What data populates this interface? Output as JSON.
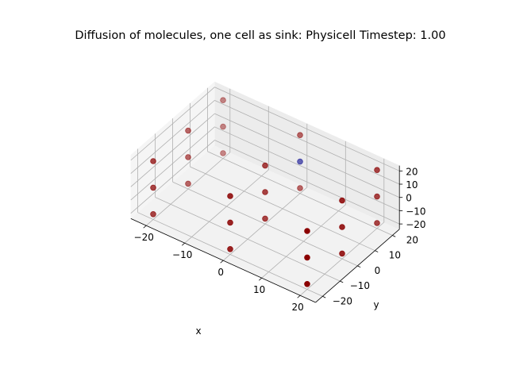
{
  "chart_data": {
    "type": "scatter3d",
    "title": "Diffusion of molecules, one cell as sink: Physicell Timestep: 1.00",
    "xlabel": "x",
    "ylabel": "y",
    "zlabel": "",
    "xlim": [
      -24,
      24
    ],
    "ylim": [
      -24,
      24
    ],
    "zlim": [
      -24,
      24
    ],
    "xticks": [
      -20,
      -10,
      0,
      10,
      20
    ],
    "yticks": [
      -20,
      -10,
      0,
      10,
      20
    ],
    "zticks": [
      -20,
      -10,
      0,
      10,
      20
    ],
    "tick_labels": {
      "x": [
        "−20",
        "−10",
        "0",
        "10",
        "20"
      ],
      "y": [
        "−20",
        "−10",
        "0",
        "10",
        "20"
      ],
      "z": [
        "−20",
        "−10",
        "0",
        "10",
        "20"
      ]
    },
    "grid": true,
    "marker_color": "#8b0000",
    "sink_color": "#00008b",
    "points": [
      {
        "x": -20,
        "y": -20,
        "z": -20,
        "kind": "cell"
      },
      {
        "x": -20,
        "y": -20,
        "z": 0,
        "kind": "cell"
      },
      {
        "x": -20,
        "y": -20,
        "z": 20,
        "kind": "cell"
      },
      {
        "x": -20,
        "y": 0,
        "z": -20,
        "kind": "cell"
      },
      {
        "x": -20,
        "y": 0,
        "z": 0,
        "kind": "cell"
      },
      {
        "x": -20,
        "y": 0,
        "z": 20,
        "kind": "cell"
      },
      {
        "x": -20,
        "y": 20,
        "z": -20,
        "kind": "cell"
      },
      {
        "x": -20,
        "y": 20,
        "z": 0,
        "kind": "cell"
      },
      {
        "x": -20,
        "y": 20,
        "z": 20,
        "kind": "cell"
      },
      {
        "x": 0,
        "y": -20,
        "z": -20,
        "kind": "cell"
      },
      {
        "x": 0,
        "y": -20,
        "z": 0,
        "kind": "cell"
      },
      {
        "x": 0,
        "y": -20,
        "z": 20,
        "kind": "cell"
      },
      {
        "x": 0,
        "y": 0,
        "z": -20,
        "kind": "cell"
      },
      {
        "x": 0,
        "y": 0,
        "z": 0,
        "kind": "cell"
      },
      {
        "x": 0,
        "y": 0,
        "z": 20,
        "kind": "cell"
      },
      {
        "x": 0,
        "y": 20,
        "z": -20,
        "kind": "cell"
      },
      {
        "x": 0,
        "y": 20,
        "z": 0,
        "kind": "sink"
      },
      {
        "x": 0,
        "y": 20,
        "z": 20,
        "kind": "cell"
      },
      {
        "x": 20,
        "y": -20,
        "z": -20,
        "kind": "cell"
      },
      {
        "x": 20,
        "y": -20,
        "z": 0,
        "kind": "cell"
      },
      {
        "x": 20,
        "y": -20,
        "z": 20,
        "kind": "cell"
      },
      {
        "x": 20,
        "y": 0,
        "z": -20,
        "kind": "cell"
      },
      {
        "x": 20,
        "y": 0,
        "z": 0,
        "kind": "cell"
      },
      {
        "x": 20,
        "y": 0,
        "z": 20,
        "kind": "cell"
      },
      {
        "x": 20,
        "y": 20,
        "z": -20,
        "kind": "cell"
      },
      {
        "x": 20,
        "y": 20,
        "z": 0,
        "kind": "cell"
      },
      {
        "x": 20,
        "y": 20,
        "z": 20,
        "kind": "cell"
      }
    ]
  }
}
